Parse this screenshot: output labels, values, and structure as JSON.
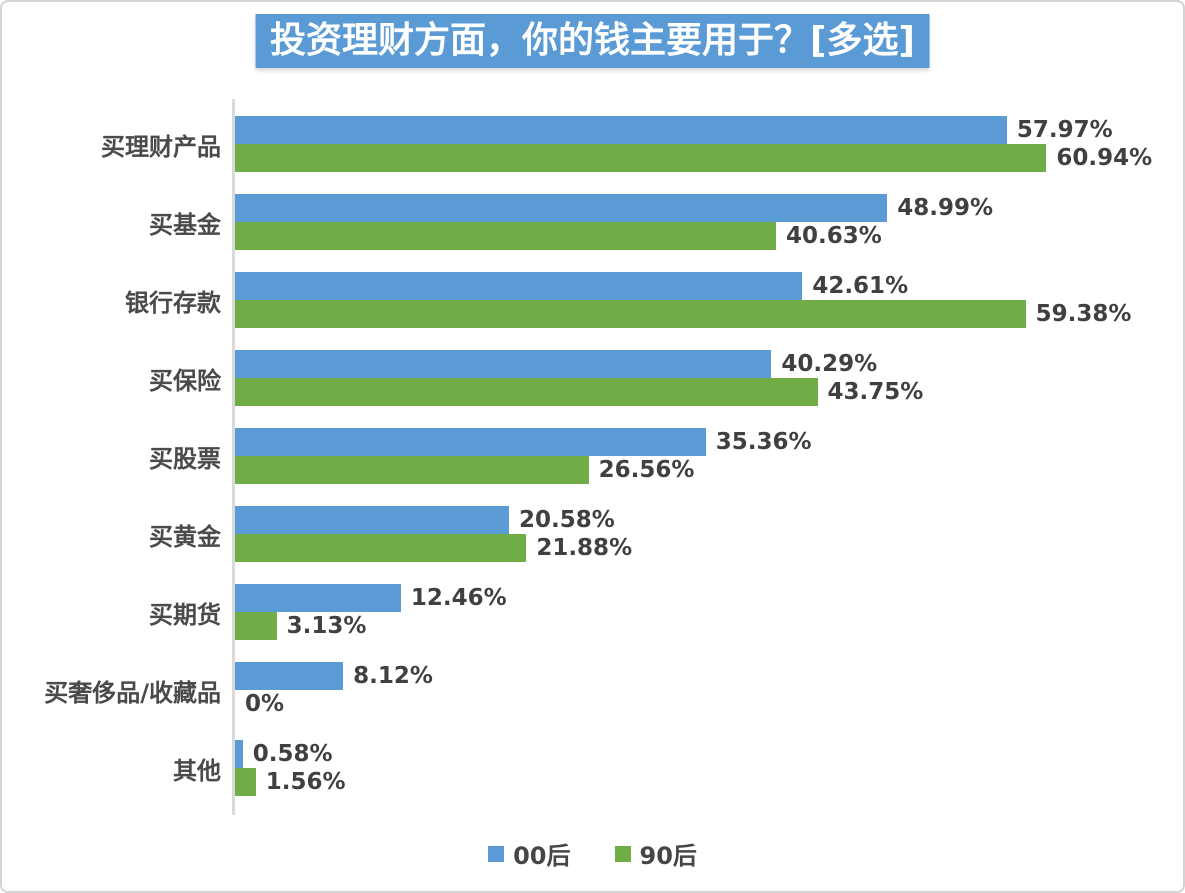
{
  "title": "投资理财方面，你的钱主要用于？[多选]",
  "colors": {
    "title_bg": "#5B9BD5",
    "title_text": "#FFFFFF",
    "axis_line": "#D9D9D9",
    "label_text": "#4A4A4A",
    "value_text": "#404040",
    "legend_text": "#464646",
    "series_00s": "#5B9BD5",
    "series_90s": "#70AD47"
  },
  "legend": {
    "items": [
      {
        "key": "00s",
        "label": "00后",
        "color": "#5B9BD5"
      },
      {
        "key": "90s",
        "label": "90后",
        "color": "#70AD47"
      }
    ]
  },
  "chart_data": {
    "type": "bar",
    "orientation": "horizontal",
    "title": "投资理财方面，你的钱主要用于？[多选]",
    "categories": [
      "买理财产品",
      "买基金",
      "银行存款",
      "买保险",
      "买股票",
      "买黄金",
      "买期货",
      "买奢侈品/收藏品",
      "其他"
    ],
    "series": [
      {
        "key": "00s",
        "name": "00后",
        "color": "#5B9BD5",
        "values": [
          57.97,
          48.99,
          42.61,
          40.29,
          35.36,
          20.58,
          12.46,
          8.12,
          0.58
        ],
        "labels": [
          "57.97%",
          "48.99%",
          "42.61%",
          "40.29%",
          "35.36%",
          "20.58%",
          "12.46%",
          "8.12%",
          "0.58%"
        ]
      },
      {
        "key": "90s",
        "name": "90后",
        "color": "#70AD47",
        "values": [
          60.94,
          40.63,
          59.38,
          43.75,
          26.56,
          21.88,
          3.13,
          0,
          1.56
        ],
        "labels": [
          "60.94%",
          "40.63%",
          "59.38%",
          "43.75%",
          "26.56%",
          "21.88%",
          "3.13%",
          "0%",
          "1.56%"
        ]
      }
    ],
    "xlim": [
      0,
      70
    ],
    "grid": false,
    "value_labels_shown": true,
    "legend_position": "bottom"
  }
}
